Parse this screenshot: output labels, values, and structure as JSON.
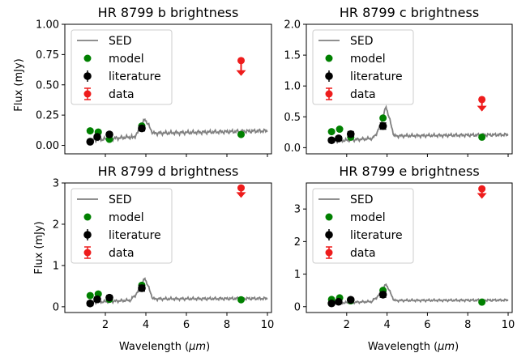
{
  "figure": {
    "xlabel_main": "Wavelength (",
    "xlabel_unit": "μm",
    "xlabel_close": ")",
    "ylabel": "Flux (mJy)",
    "legend_entries": [
      "SED",
      "model",
      "literature",
      "data"
    ]
  },
  "colors": {
    "sed": "#808080",
    "model": "#008000",
    "literature": "#000000",
    "data": "#ee1c1c",
    "axes": "#000000"
  },
  "chart_data": [
    {
      "type": "scatter",
      "title": "HR 8799 b brightness",
      "xlabel": "Wavelength (μm)",
      "ylabel": "Flux (mJy)",
      "xlim": [
        0.0,
        10.2
      ],
      "ylim": [
        -0.07,
        1.0
      ],
      "xticks": [
        2,
        4,
        6,
        8,
        10
      ],
      "xtick_labels": [],
      "yticks": [
        0.0,
        0.25,
        0.5,
        0.75,
        1.0
      ],
      "ytick_labels": [
        "0.00",
        "0.25",
        "0.50",
        "0.75",
        "1.00"
      ],
      "legend": "upper-left",
      "sed": {
        "base": [
          0.04,
          0.07,
          0.1,
          0.12
        ],
        "bump": [
          0.06,
          0.22
        ],
        "wiggle": 0.018
      },
      "model": {
        "x": [
          1.25,
          1.65,
          2.2,
          3.8,
          8.7
        ],
        "y": [
          0.12,
          0.11,
          0.05,
          0.16,
          0.09
        ]
      },
      "literature": {
        "x": [
          1.25,
          1.6,
          2.2,
          3.8
        ],
        "y": [
          0.03,
          0.07,
          0.09,
          0.14
        ],
        "err": [
          0.01,
          0.01,
          0.015,
          0.02
        ]
      },
      "data": {
        "x": [
          8.7
        ],
        "y": [
          0.7
        ],
        "upper_limit": true,
        "arrow": 0.12
      }
    },
    {
      "type": "scatter",
      "title": "HR 8799 c brightness",
      "xlabel": "Wavelength (μm)",
      "ylabel": "",
      "xlim": [
        0.0,
        10.2
      ],
      "ylim": [
        -0.1,
        2.0
      ],
      "xticks": [
        2,
        4,
        6,
        8,
        10
      ],
      "xtick_labels": [],
      "yticks": [
        0.0,
        0.5,
        1.0,
        1.5,
        2.0
      ],
      "ytick_labels": [
        "0.0",
        "0.5",
        "1.0",
        "1.5",
        "2.0"
      ],
      "legend": "upper-left",
      "sed": {
        "base": [
          0.1,
          0.15,
          0.19,
          0.21
        ],
        "bump": [
          0.17,
          0.67
        ],
        "wiggle": 0.03
      },
      "model": {
        "x": [
          1.25,
          1.65,
          2.2,
          3.8,
          8.7
        ],
        "y": [
          0.26,
          0.3,
          0.17,
          0.48,
          0.17
        ]
      },
      "literature": {
        "x": [
          1.25,
          1.6,
          2.2,
          3.8
        ],
        "y": [
          0.12,
          0.15,
          0.22,
          0.35
        ],
        "err": [
          0.03,
          0.03,
          0.04,
          0.05
        ]
      },
      "data": {
        "x": [
          8.7
        ],
        "y": [
          0.78
        ],
        "upper_limit": true,
        "arrow": 0.18
      }
    },
    {
      "type": "scatter",
      "title": "HR 8799 d brightness",
      "xlabel": "Wavelength (μm)",
      "ylabel": "Flux (mJy)",
      "xlim": [
        0.0,
        10.2
      ],
      "ylim": [
        -0.14,
        3.0
      ],
      "xticks": [
        2,
        4,
        6,
        8,
        10
      ],
      "xtick_labels": [
        "2",
        "4",
        "6",
        "8",
        "10"
      ],
      "yticks": [
        0,
        1,
        2,
        3
      ],
      "ytick_labels": [
        "0",
        "1",
        "2",
        "3"
      ],
      "legend": "upper-left",
      "sed": {
        "base": [
          0.1,
          0.16,
          0.19,
          0.2
        ],
        "bump": [
          0.22,
          0.7
        ],
        "wiggle": 0.04
      },
      "model": {
        "x": [
          1.25,
          1.65,
          2.2,
          3.8,
          8.7
        ],
        "y": [
          0.27,
          0.31,
          0.18,
          0.52,
          0.17
        ]
      },
      "literature": {
        "x": [
          1.25,
          1.6,
          2.2,
          3.8
        ],
        "y": [
          0.08,
          0.18,
          0.22,
          0.45
        ],
        "err": [
          0.05,
          0.05,
          0.05,
          0.07
        ]
      },
      "data": {
        "x": [
          8.7
        ],
        "y": [
          2.88
        ],
        "upper_limit": true,
        "arrow": 0.22
      }
    },
    {
      "type": "scatter",
      "title": "HR 8799 e brightness",
      "xlabel": "Wavelength (μm)",
      "ylabel": "",
      "xlim": [
        0.0,
        10.2
      ],
      "ylim": [
        -0.18,
        3.8
      ],
      "xticks": [
        2,
        4,
        6,
        8,
        10
      ],
      "xtick_labels": [
        "2",
        "4",
        "6",
        "8",
        "10"
      ],
      "yticks": [
        0,
        1,
        2,
        3
      ],
      "ytick_labels": [
        "0",
        "1",
        "2",
        "3"
      ],
      "legend": "upper-left",
      "sed": {
        "base": [
          0.1,
          0.16,
          0.19,
          0.2
        ],
        "bump": [
          0.22,
          0.7
        ],
        "wiggle": 0.04
      },
      "model": {
        "x": [
          1.25,
          1.65,
          2.2,
          3.8,
          8.7
        ],
        "y": [
          0.22,
          0.27,
          0.18,
          0.5,
          0.14
        ]
      },
      "literature": {
        "x": [
          1.25,
          1.6,
          2.2,
          3.8
        ],
        "y": [
          0.1,
          0.15,
          0.21,
          0.37
        ],
        "err": [
          0.05,
          0.05,
          0.05,
          0.08
        ]
      },
      "data": {
        "x": [
          8.7
        ],
        "y": [
          3.62
        ],
        "upper_limit": true,
        "arrow": 0.28
      }
    }
  ]
}
